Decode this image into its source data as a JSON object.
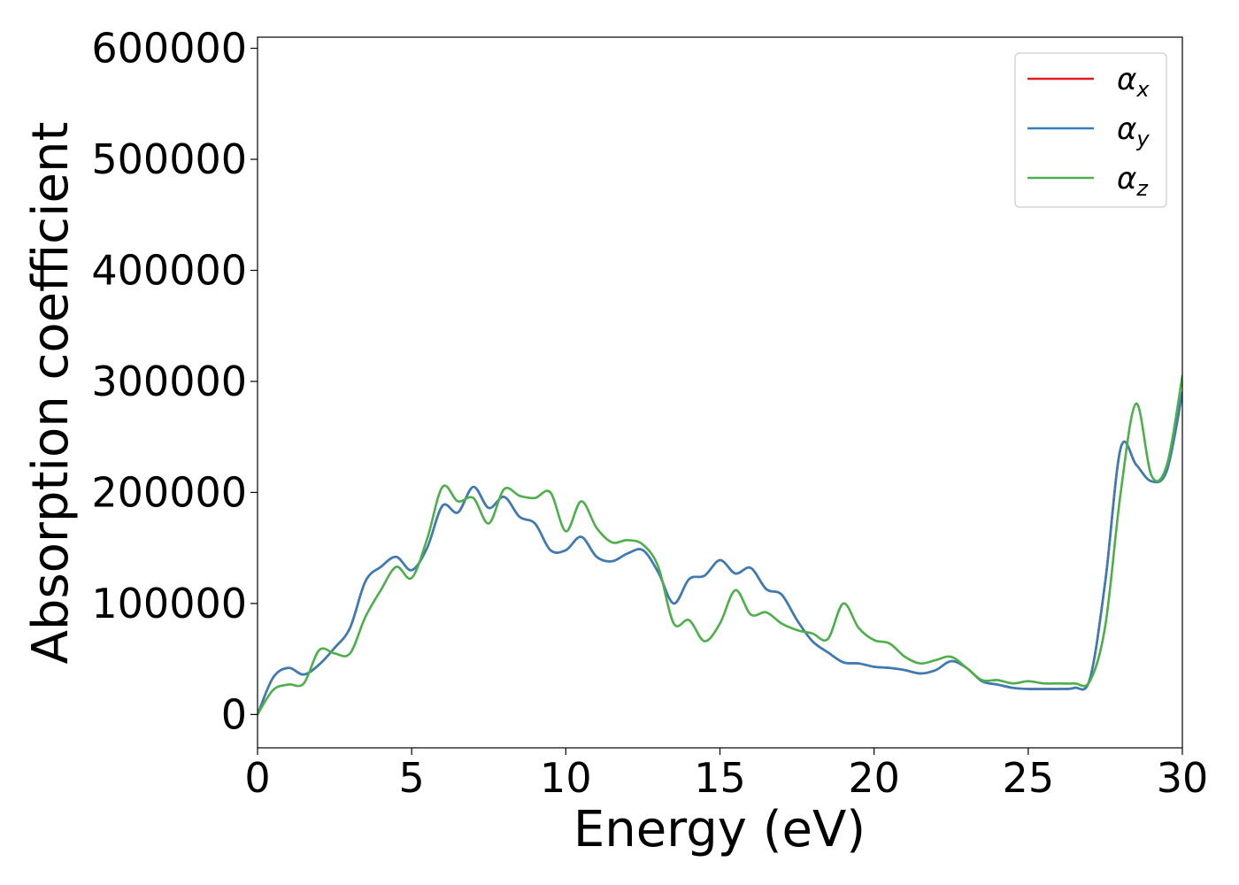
{
  "chart_data": {
    "type": "line",
    "xlabel": "Energy (eV)",
    "ylabel": "Absorption coefficient",
    "xlim": [
      0,
      30
    ],
    "ylim": [
      -30000,
      610000
    ],
    "xticks": [
      0,
      5,
      10,
      15,
      20,
      25,
      30
    ],
    "yticks": [
      0,
      100000,
      200000,
      300000,
      400000,
      500000,
      600000
    ],
    "grid": false,
    "legend_position": "top-right",
    "x": [
      0,
      0.5,
      1,
      1.5,
      2,
      2.5,
      3,
      3.5,
      4,
      4.5,
      5,
      5.5,
      6,
      6.5,
      7,
      7.5,
      8,
      8.5,
      9,
      9.5,
      10,
      10.5,
      11,
      11.5,
      12,
      12.5,
      13,
      13.5,
      14,
      14.5,
      15,
      15.5,
      16,
      16.5,
      17,
      17.5,
      18,
      18.5,
      19,
      19.5,
      20,
      20.5,
      21,
      21.5,
      22,
      22.5,
      23,
      23.5,
      24,
      24.5,
      25,
      25.5,
      26,
      26.5,
      27,
      27.5,
      28,
      28.5,
      29,
      29.5,
      30
    ],
    "series": [
      {
        "name": "α",
        "subscript": "x",
        "color": "#e41a1c",
        "values": [
          0,
          33000,
          42000,
          36000,
          45000,
          60000,
          78000,
          120000,
          133000,
          142000,
          130000,
          150000,
          188000,
          182000,
          205000,
          186000,
          196000,
          178000,
          172000,
          148000,
          148000,
          160000,
          142000,
          138000,
          145000,
          148000,
          128000,
          100000,
          122000,
          125000,
          139000,
          127000,
          132000,
          113000,
          108000,
          85000,
          66000,
          56000,
          47000,
          46000,
          43000,
          42000,
          40000,
          37000,
          40000,
          48000,
          42000,
          30000,
          27000,
          24000,
          23000,
          23000,
          23000,
          24000,
          32000,
          120000,
          240000,
          225000,
          210000,
          220000,
          290000
        ]
      },
      {
        "name": "α",
        "subscript": "y",
        "color": "#377eb8",
        "values": [
          0,
          33000,
          42000,
          36000,
          45000,
          60000,
          78000,
          120000,
          133000,
          142000,
          130000,
          150000,
          188000,
          182000,
          205000,
          186000,
          196000,
          178000,
          172000,
          148000,
          148000,
          160000,
          142000,
          138000,
          145000,
          148000,
          128000,
          100000,
          122000,
          125000,
          139000,
          127000,
          132000,
          113000,
          108000,
          85000,
          66000,
          56000,
          47000,
          46000,
          43000,
          42000,
          40000,
          37000,
          40000,
          48000,
          42000,
          30000,
          27000,
          24000,
          23000,
          23000,
          23000,
          24000,
          32000,
          120000,
          240000,
          225000,
          210000,
          220000,
          290000
        ]
      },
      {
        "name": "α",
        "subscript": "z",
        "color": "#4daf4a",
        "values": [
          0,
          22000,
          27000,
          28000,
          58000,
          55000,
          55000,
          88000,
          112000,
          133000,
          123000,
          158000,
          205000,
          192000,
          195000,
          172000,
          203000,
          197000,
          195000,
          200000,
          165000,
          192000,
          168000,
          155000,
          157000,
          153000,
          133000,
          82000,
          85000,
          66000,
          82000,
          112000,
          90000,
          92000,
          82000,
          76000,
          73000,
          68000,
          100000,
          78000,
          67000,
          64000,
          52000,
          46000,
          49000,
          52000,
          42000,
          31000,
          31000,
          28000,
          30000,
          28000,
          28000,
          28000,
          30000,
          80000,
          200000,
          280000,
          215000,
          225000,
          305000
        ]
      }
    ]
  }
}
